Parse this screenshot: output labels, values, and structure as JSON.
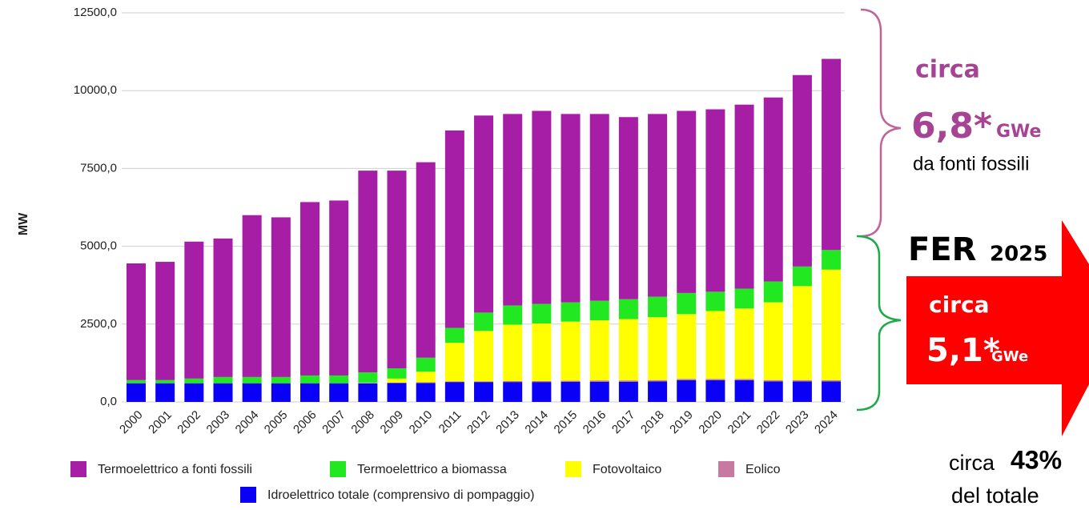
{
  "chart_data": {
    "type": "stacked_bar",
    "y_label": "MW",
    "categories": [
      "2000",
      "2001",
      "2002",
      "2003",
      "2004",
      "2005",
      "2006",
      "2007",
      "2008",
      "2009",
      "2010",
      "2011",
      "2012",
      "2013",
      "2014",
      "2015",
      "2016",
      "2017",
      "2018",
      "2019",
      "2020",
      "2021",
      "2022",
      "2023",
      "2024"
    ],
    "series": [
      {
        "name": "Idroelettrico totale (comprensivo di pompaggio)",
        "color": "#0a00f5",
        "values": [
          600,
          600,
          600,
          600,
          600,
          600,
          600,
          600,
          600,
          610,
          610,
          640,
          640,
          640,
          640,
          650,
          650,
          650,
          660,
          700,
          700,
          700,
          660,
          660,
          660
        ]
      },
      {
        "name": "Eolico",
        "color": "#c9789f",
        "values": [
          0,
          0,
          0,
          0,
          0,
          0,
          0,
          0,
          10,
          10,
          20,
          20,
          20,
          30,
          30,
          30,
          40,
          40,
          40,
          40,
          40,
          40,
          40,
          40,
          40
        ]
      },
      {
        "name": "Fotovoltaico",
        "color": "#ffff00",
        "values": [
          0,
          0,
          0,
          0,
          0,
          0,
          0,
          0,
          10,
          130,
          340,
          1240,
          1620,
          1810,
          1850,
          1900,
          1930,
          1970,
          2020,
          2080,
          2180,
          2260,
          2500,
          3020,
          3550
        ]
      },
      {
        "name": "Termoelettrico a biomassa",
        "color": "#22e822",
        "values": [
          100,
          100,
          150,
          200,
          200,
          200,
          250,
          250,
          330,
          330,
          450,
          480,
          590,
          620,
          630,
          620,
          630,
          640,
          660,
          680,
          620,
          640,
          670,
          630,
          630
        ]
      },
      {
        "name": "Termoelettrico a fonti fossili",
        "color": "#a61ea6",
        "values": [
          3750,
          3800,
          4400,
          4450,
          5200,
          5130,
          5570,
          5620,
          6480,
          6350,
          6280,
          6340,
          6330,
          6150,
          6200,
          6050,
          6000,
          5850,
          5870,
          5850,
          5860,
          5910,
          5910,
          6150,
          6140
        ]
      }
    ],
    "ylim": [
      0,
      12500
    ],
    "yticks": [
      {
        "value": 0,
        "label": "0,0"
      },
      {
        "value": 2500,
        "label": "2500,0"
      },
      {
        "value": 5000,
        "label": "5000,0"
      },
      {
        "value": 7500,
        "label": "7500,0"
      },
      {
        "value": 10000,
        "label": "10000,0"
      },
      {
        "value": 12500,
        "label": "12500,0"
      }
    ],
    "grid": true,
    "legend": "bottom",
    "annotations": {
      "fossil_circa": "circa",
      "fossil_value": "6,8*",
      "fossil_unit": "GWe",
      "fossil_text": "da fonti fossili",
      "fer": "FER",
      "fer_year": "2025",
      "fer_circa": "circa",
      "fer_value": "5,1*",
      "fer_unit": "GWe",
      "share_circa": "circa",
      "share_value": "43%",
      "share_text": "del totale"
    }
  }
}
